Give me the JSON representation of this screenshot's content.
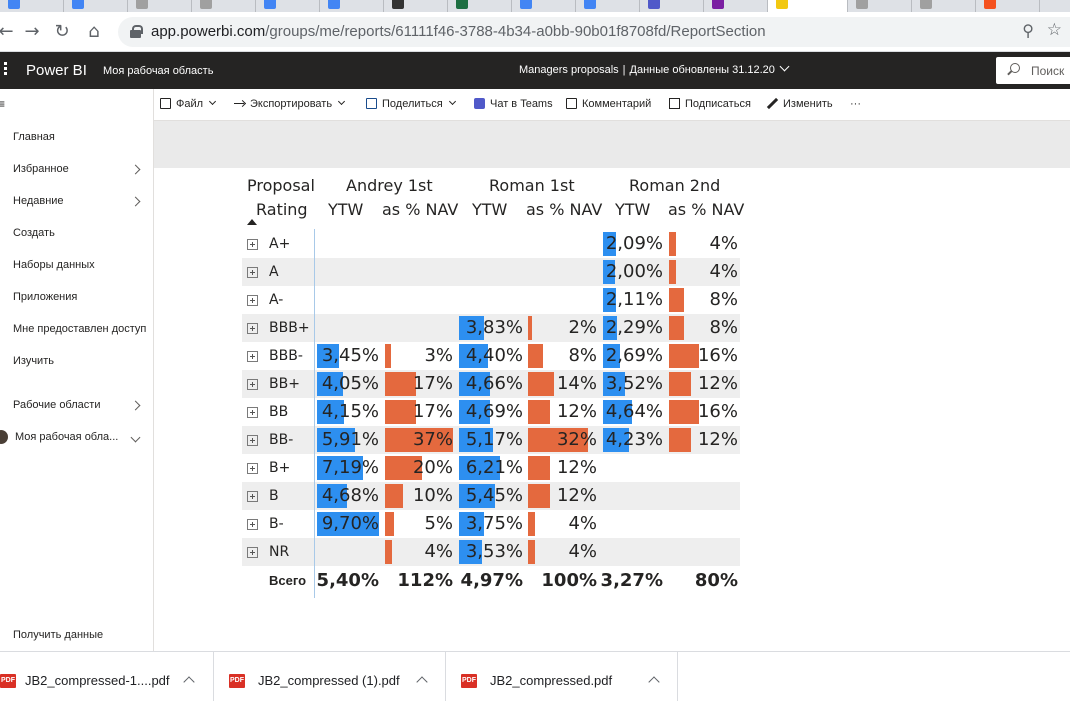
{
  "browser": {
    "url_host": "app.powerbi.com",
    "url_path": "/groups/me/reports/61111f46-3788-4b34-a0bb-90b01f8708fd/ReportSection"
  },
  "header": {
    "brand": "Power BI",
    "workspace": "Моя рабочая область",
    "report_name": "Managers proposals",
    "separator": "|",
    "data_updated": "Данные обновлены 31.12.20",
    "search_placeholder": "Поиск"
  },
  "sidebar": {
    "items": [
      {
        "label": "Главная",
        "chevron": false
      },
      {
        "label": "Избранное",
        "chevron": true
      },
      {
        "label": "Недавние",
        "chevron": true
      },
      {
        "label": "Создать",
        "chevron": false
      },
      {
        "label": "Наборы данных",
        "chevron": false
      },
      {
        "label": "Приложения",
        "chevron": false
      },
      {
        "label": "Мне предоставлен доступ",
        "chevron": false
      },
      {
        "label": "Изучить",
        "chevron": false
      },
      {
        "label": "Рабочие области",
        "chevron": true
      },
      {
        "label": "Моя рабочая обла...",
        "chevron": true
      }
    ],
    "bottom_item": "Получить данные"
  },
  "actionbar": {
    "file": "Файл",
    "export": "Экспортировать",
    "share": "Поделиться",
    "teams": "Чат в Teams",
    "comment": "Комментарий",
    "subscribe": "Подписаться",
    "edit": "Изменить",
    "more": "···"
  },
  "matrix": {
    "row_header_line1": "Proposal",
    "row_header_line2": "Rating",
    "groups": [
      "Andrey 1st",
      "Roman 1st",
      "Roman 2nd"
    ],
    "subcolumns": [
      "YTW",
      "as % NAV"
    ],
    "max_ytw": 9.7,
    "max_nav": 37,
    "rows": [
      {
        "label": "A+",
        "cells": [
          null,
          null,
          null,
          null,
          "2,09%",
          "4%"
        ],
        "num": [
          null,
          null,
          null,
          null,
          2.09,
          4
        ]
      },
      {
        "label": "A",
        "cells": [
          null,
          null,
          null,
          null,
          "2,00%",
          "4%"
        ],
        "num": [
          null,
          null,
          null,
          null,
          2.0,
          4
        ]
      },
      {
        "label": "A-",
        "cells": [
          null,
          null,
          null,
          null,
          "2,11%",
          "8%"
        ],
        "num": [
          null,
          null,
          null,
          null,
          2.11,
          8
        ]
      },
      {
        "label": "BBB+",
        "cells": [
          null,
          null,
          "3,83%",
          "2%",
          "2,29%",
          "8%"
        ],
        "num": [
          null,
          null,
          3.83,
          2,
          2.29,
          8
        ]
      },
      {
        "label": "BBB-",
        "cells": [
          "3,45%",
          "3%",
          "4,40%",
          "8%",
          "2,69%",
          "16%"
        ],
        "num": [
          3.45,
          3,
          4.4,
          8,
          2.69,
          16
        ]
      },
      {
        "label": "BB+",
        "cells": [
          "4,05%",
          "17%",
          "4,66%",
          "14%",
          "3,52%",
          "12%"
        ],
        "num": [
          4.05,
          17,
          4.66,
          14,
          3.52,
          12
        ]
      },
      {
        "label": "BB",
        "cells": [
          "4,15%",
          "17%",
          "4,69%",
          "12%",
          "4,64%",
          "16%"
        ],
        "num": [
          4.15,
          17,
          4.69,
          12,
          4.64,
          16
        ]
      },
      {
        "label": "BB-",
        "cells": [
          "5,91%",
          "37%",
          "5,17%",
          "32%",
          "4,23%",
          "12%"
        ],
        "num": [
          5.91,
          37,
          5.17,
          32,
          4.23,
          12
        ]
      },
      {
        "label": "B+",
        "cells": [
          "7,19%",
          "20%",
          "6,21%",
          "12%",
          null,
          null
        ],
        "num": [
          7.19,
          20,
          6.21,
          12,
          null,
          null
        ]
      },
      {
        "label": "B",
        "cells": [
          "4,68%",
          "10%",
          "5,45%",
          "12%",
          null,
          null
        ],
        "num": [
          4.68,
          10,
          5.45,
          12,
          null,
          null
        ]
      },
      {
        "label": "B-",
        "cells": [
          "9,70%",
          "5%",
          "3,75%",
          "4%",
          null,
          null
        ],
        "num": [
          9.7,
          5,
          3.75,
          4,
          null,
          null
        ]
      },
      {
        "label": "NR",
        "cells": [
          null,
          "4%",
          "3,53%",
          "4%",
          null,
          null
        ],
        "num": [
          null,
          4,
          3.53,
          4,
          null,
          null
        ]
      }
    ],
    "total": {
      "label": "Всего",
      "cells": [
        "5,40%",
        "112%",
        "4,97%",
        "100%",
        "3,27%",
        "80%"
      ]
    }
  },
  "downloads": [
    {
      "name": "JB2_compressed-1....pdf",
      "badge": "PDF"
    },
    {
      "name": "JB2_compressed (1).pdf",
      "badge": "PDF"
    },
    {
      "name": "JB2_compressed.pdf",
      "badge": "PDF"
    }
  ],
  "colors": {
    "ytw_bar": "#2d8ff0",
    "nav_bar": "#e4693e",
    "header_bg": "#252423"
  }
}
